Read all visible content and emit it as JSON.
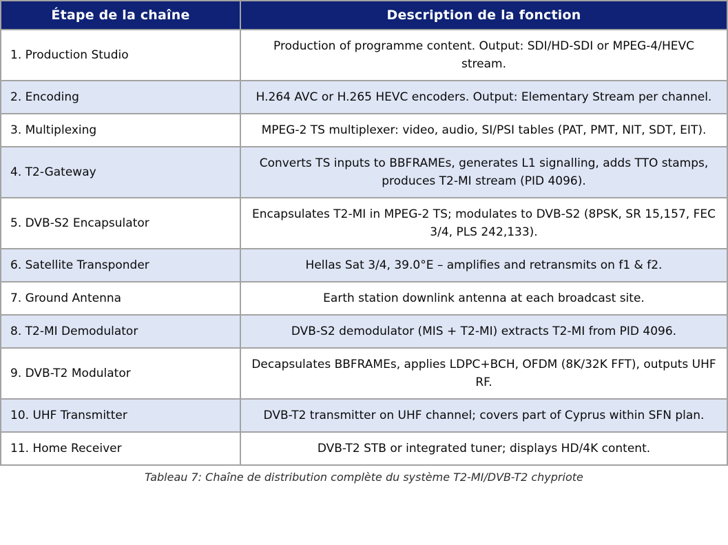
{
  "table": {
    "headers": {
      "stage": "Étape de la chaîne",
      "description": "Description de la fonction"
    },
    "rows": [
      {
        "stage": "1. Production Studio",
        "description": "Production of programme content. Output: SDI/HD-SDI or MPEG-4/HEVC stream."
      },
      {
        "stage": "2. Encoding",
        "description": "H.264 AVC or H.265 HEVC encoders. Output: Elementary Stream per channel."
      },
      {
        "stage": "3. Multiplexing",
        "description": "MPEG-2 TS multiplexer: video, audio, SI/PSI tables (PAT, PMT, NIT, SDT, EIT)."
      },
      {
        "stage": "4. T2-Gateway",
        "description": "Converts TS inputs to BBFRAMEs, generates L1 signalling, adds TTO stamps, produces T2-MI stream (PID 4096)."
      },
      {
        "stage": "5. DVB-S2 Encapsulator",
        "description": "Encapsulates T2-MI in MPEG-2 TS; modulates to DVB-S2 (8PSK, SR 15,157, FEC 3/4, PLS 242,133)."
      },
      {
        "stage": "6. Satellite Transponder",
        "description": "Hellas Sat 3/4, 39.0°E – amplifies and retransmits on f1 & f2."
      },
      {
        "stage": "7. Ground Antenna",
        "description": "Earth station downlink antenna at each broadcast site."
      },
      {
        "stage": "8. T2-MI Demodulator",
        "description": "DVB-S2 demodulator (MIS + T2-MI) extracts T2-MI from PID 4096."
      },
      {
        "stage": "9. DVB-T2 Modulator",
        "description": "Decapsulates BBFRAMEs, applies LDPC+BCH, OFDM (8K/32K FFT), outputs UHF RF."
      },
      {
        "stage": "10. UHF Transmitter",
        "description": "DVB-T2 transmitter on UHF channel; covers part of Cyprus within SFN plan."
      },
      {
        "stage": "11. Home Receiver",
        "description": "DVB-T2 STB or integrated tuner; displays HD/4K content."
      }
    ],
    "caption": "Tableau 7: Chaîne de distribution complète du système T2-MI/DVB-T2 chypriote"
  },
  "colors": {
    "header_bg": "#0f2276",
    "header_text": "#ffffff",
    "row_bg": "#ffffff",
    "row_alt_bg": "#dee5f5",
    "border": "#a3a3a3",
    "text": "#0a0a0a",
    "caption_text": "#2e2e2e"
  }
}
